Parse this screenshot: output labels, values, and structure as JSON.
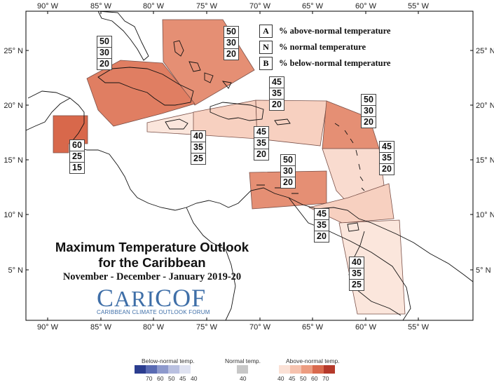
{
  "map": {
    "lon_labels": [
      "90° W",
      "85° W",
      "80° W",
      "75° W",
      "70° W",
      "65° W",
      "60° W",
      "55° W"
    ],
    "lat_labels": [
      "25° N",
      "20° N",
      "15° N",
      "10° N",
      "5° N"
    ],
    "regions": [
      {
        "name": "Bahamas",
        "fill": "#e58f74",
        "values": {
          "A": "50",
          "N": "30",
          "B": "20"
        }
      },
      {
        "name": "Cuba",
        "fill": "#e07e62",
        "values": {
          "A": "50",
          "N": "30",
          "B": "20"
        }
      },
      {
        "name": "Belize",
        "fill": "#d8684b",
        "values": {
          "A": "60",
          "N": "25",
          "B": "15"
        }
      },
      {
        "name": "Jamaica",
        "fill": "#fbe6dc",
        "values": {
          "A": "40",
          "N": "35",
          "B": "25"
        }
      },
      {
        "name": "Hispaniola",
        "fill": "#f7d0c0",
        "values": {
          "A": "45",
          "N": "35",
          "B": "20"
        }
      },
      {
        "name": "Turks and Caicos",
        "fill": "#f7d0c0",
        "values": {
          "A": "45",
          "N": "35",
          "B": "20"
        }
      },
      {
        "name": "Northern Leeward Islands",
        "fill": "#e58f74",
        "values": {
          "A": "50",
          "N": "30",
          "B": "20"
        }
      },
      {
        "name": "Windward Islands",
        "fill": "#f9dbcf",
        "values": {
          "A": "45",
          "N": "35",
          "B": "20"
        }
      },
      {
        "name": "ABC Islands",
        "fill": "#e58f74",
        "values": {
          "A": "50",
          "N": "30",
          "B": "20"
        }
      },
      {
        "name": "Trinidad and Tobago",
        "fill": "#f7d0c0",
        "values": {
          "A": "45",
          "N": "35",
          "B": "20"
        }
      },
      {
        "name": "Guianas",
        "fill": "#fbe6dc",
        "values": {
          "A": "40",
          "N": "35",
          "B": "25"
        }
      }
    ]
  },
  "legend": {
    "rows": [
      {
        "key": "A",
        "text": "% above-normal temperature"
      },
      {
        "key": "N",
        "text": "% normal temperature"
      },
      {
        "key": "B",
        "text": "% below-normal temperature"
      }
    ]
  },
  "title": {
    "line1": "Maximum Temperature Outlook",
    "line2": "for the Caribbean",
    "subtitle": "November - December - January 2019-20"
  },
  "logo": {
    "first": "C",
    "rest": "ARI",
    "first2": "COF",
    "tagline": "CARIBBEAN CLIMATE OUTLOOK FORUM"
  },
  "colorbar": {
    "below_caption": "Below-normal temp.",
    "normal_caption": "Normal temp.",
    "above_caption": "Above-normal temp.",
    "below_ticks": [
      "70",
      "60",
      "50",
      "45",
      "40"
    ],
    "normal_ticks": [
      "40"
    ],
    "above_ticks": [
      "40",
      "45",
      "50",
      "60",
      "70"
    ],
    "below_colors": [
      "#2b3d8f",
      "#5a6bb3",
      "#8d99cc",
      "#b9c0e0",
      "#dfe2f1"
    ],
    "normal_color": "#c7c7c7",
    "above_colors": [
      "#fbe1d6",
      "#f6c2ae",
      "#ec9c80",
      "#d9694d",
      "#b5392a"
    ]
  }
}
